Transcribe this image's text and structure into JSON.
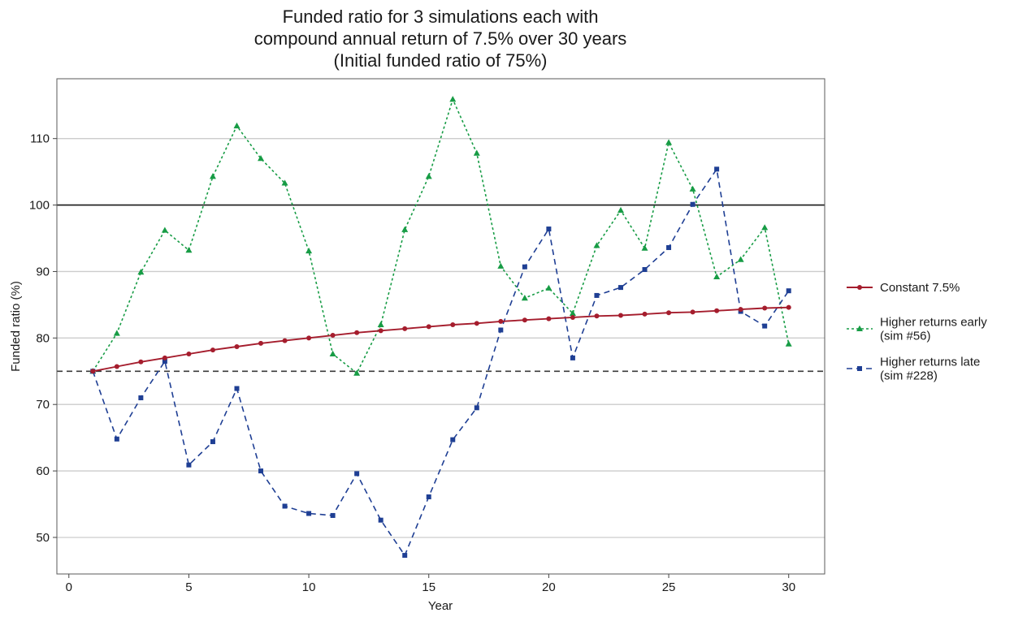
{
  "chart_data": {
    "type": "line",
    "title": [
      "Funded ratio for 3 simulations each with",
      "compound annual return of 7.5% over 30 years",
      "(Initial funded ratio of 75%)"
    ],
    "xlabel": "Year",
    "ylabel": "Funded ratio (%)",
    "xlim": [
      -0.5,
      31.5
    ],
    "ylim": [
      44.5,
      119
    ],
    "xticks": [
      0,
      5,
      10,
      15,
      20,
      25,
      30
    ],
    "yticks": [
      50,
      60,
      70,
      80,
      90,
      100,
      110
    ],
    "grid": "horizontal",
    "legend_position": "right",
    "reference_lines": [
      {
        "y": 100,
        "style": "solid",
        "color": "#1a1a1a"
      },
      {
        "y": 75,
        "style": "dashed",
        "color": "#3a3a3a"
      }
    ],
    "x": [
      1,
      2,
      3,
      4,
      5,
      6,
      7,
      8,
      9,
      10,
      11,
      12,
      13,
      14,
      15,
      16,
      17,
      18,
      19,
      20,
      21,
      22,
      23,
      24,
      25,
      26,
      27,
      28,
      29,
      30
    ],
    "series": [
      {
        "name": "Constant 7.5%",
        "color": "#a51d2d",
        "dash": "solid",
        "marker": "circle",
        "values": [
          75.0,
          75.7,
          76.4,
          77.0,
          77.6,
          78.2,
          78.7,
          79.2,
          79.6,
          80.0,
          80.4,
          80.8,
          81.1,
          81.4,
          81.7,
          82.0,
          82.2,
          82.5,
          82.7,
          82.9,
          83.1,
          83.3,
          83.4,
          83.6,
          83.8,
          83.9,
          84.1,
          84.3,
          84.5,
          84.6
        ]
      },
      {
        "name": "Higher returns early\n(sim #56)",
        "color": "#179c45",
        "dash": "dotted",
        "marker": "triangle",
        "values": [
          75.0,
          80.7,
          89.9,
          96.2,
          93.2,
          104.3,
          111.9,
          107.0,
          103.3,
          93.1,
          77.6,
          74.7,
          82.0,
          96.3,
          104.3,
          115.9,
          107.8,
          90.8,
          86.0,
          87.5,
          83.7,
          93.9,
          99.2,
          93.5,
          109.4,
          102.4,
          89.2,
          91.8,
          96.6,
          79.1
        ]
      },
      {
        "name": "Higher returns late\n(sim #228)",
        "color": "#1f3f94",
        "dash": "dashed",
        "marker": "square",
        "values": [
          75.0,
          64.8,
          71.0,
          76.5,
          60.9,
          64.4,
          72.4,
          60.0,
          54.7,
          53.6,
          53.3,
          59.6,
          52.6,
          47.3,
          56.1,
          64.7,
          69.5,
          81.2,
          90.7,
          96.4,
          77.0,
          86.4,
          87.6,
          90.3,
          93.6,
          100.1,
          105.4,
          84.0,
          81.8,
          87.1
        ]
      }
    ]
  }
}
